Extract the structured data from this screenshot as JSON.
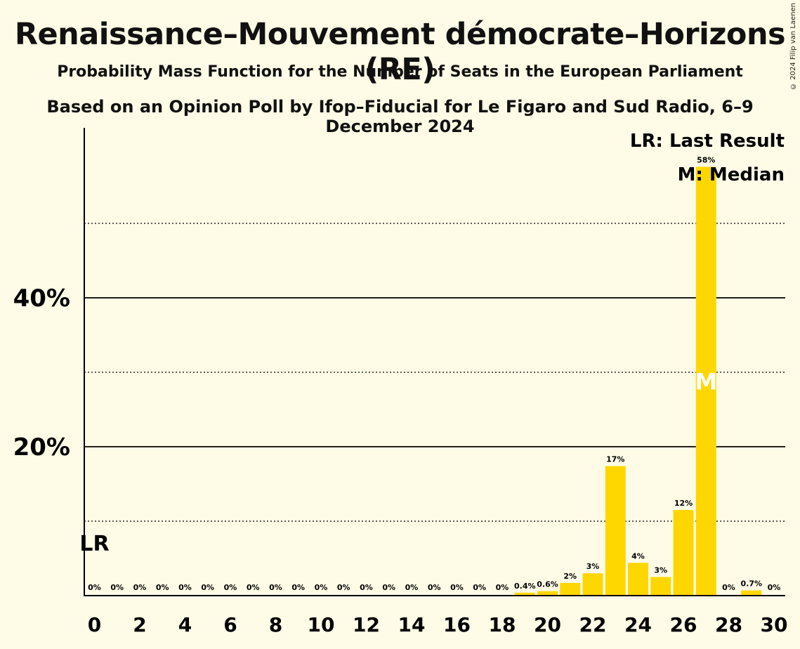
{
  "title": "Renaissance–Mouvement démocrate–Horizons (RE)",
  "subtitle": "Probability Mass Function for the Number of Seats in the European Parliament",
  "subtitle2": "Based on an Opinion Poll by Ifop–Fiducial for Le Figaro and Sud Radio, 6–9 December 2024",
  "copyright": "© 2024 Filip van Laenen",
  "colors": {
    "bar": "#ffd700",
    "background": "#fefce6",
    "axis": "#000000"
  },
  "chart_data": {
    "type": "bar",
    "x": [
      0,
      1,
      2,
      3,
      4,
      5,
      6,
      7,
      8,
      9,
      10,
      11,
      12,
      13,
      14,
      15,
      16,
      17,
      18,
      19,
      20,
      21,
      22,
      23,
      24,
      25,
      26,
      27,
      28,
      29,
      30
    ],
    "values": [
      0,
      0,
      0,
      0,
      0,
      0,
      0,
      0,
      0,
      0,
      0,
      0,
      0,
      0,
      0,
      0,
      0,
      0,
      0,
      0.4,
      0.6,
      1.7,
      3.0,
      17.4,
      4.4,
      2.5,
      11.5,
      57.6,
      0,
      0.7,
      0
    ],
    "value_labels": [
      "0%",
      "0%",
      "0%",
      "0%",
      "0%",
      "0%",
      "0%",
      "0%",
      "0%",
      "0%",
      "0%",
      "0%",
      "0%",
      "0%",
      "0%",
      "0%",
      "0%",
      "0%",
      "0%",
      "0.4%",
      "0.6%",
      "2%",
      "3%",
      "17%",
      "4%",
      "3%",
      "12%",
      "58%",
      "0%",
      "0.7%",
      "0%"
    ],
    "x_tick_labels": [
      "0",
      "2",
      "4",
      "6",
      "8",
      "10",
      "12",
      "14",
      "16",
      "18",
      "20",
      "22",
      "24",
      "26",
      "28",
      "30"
    ],
    "y_tick_labels": [
      "20%",
      "40%"
    ],
    "y_ticks": [
      20,
      40
    ],
    "y_minor_ticks": [
      10,
      30,
      50
    ],
    "ylim": [
      0,
      62
    ],
    "xlim": [
      0,
      30
    ],
    "last_result_seat": 0,
    "median_seat": 27,
    "last_result_mark": "LR",
    "median_mark": "M",
    "legend": [
      "LR: Last Result",
      "M: Median"
    ],
    "legend_placement": "top-right"
  }
}
